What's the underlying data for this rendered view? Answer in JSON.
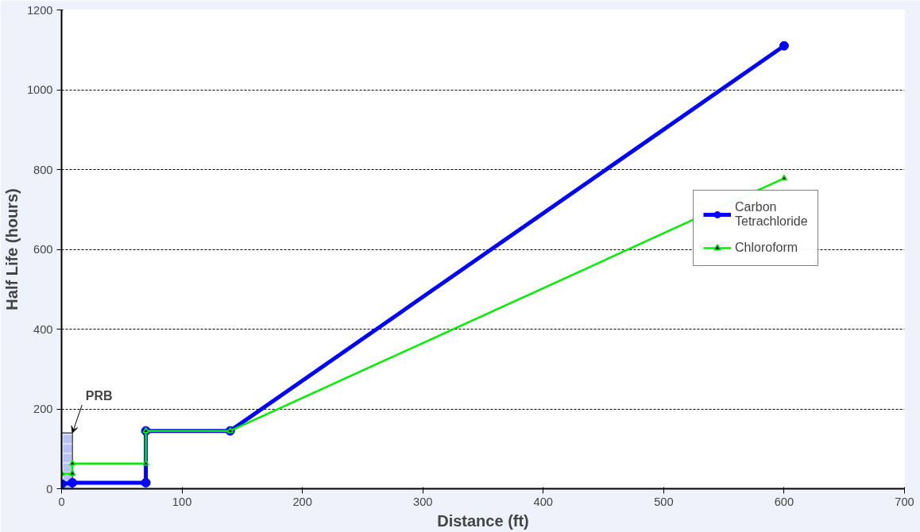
{
  "chart_data": {
    "type": "line",
    "xlabel": "Distance (ft)",
    "ylabel": "Half Life (hours)",
    "xlim": [
      0,
      700
    ],
    "xticks": [
      0,
      100,
      200,
      300,
      400,
      500,
      600,
      700
    ],
    "ylim": [
      0,
      1200
    ],
    "yticks": [
      0,
      200,
      400,
      600,
      800,
      1000,
      1200
    ],
    "grid": "y",
    "legend": "right",
    "line_style": "solid",
    "series": [
      {
        "name": "Carbon Tetrachloride",
        "color": "#0000ff",
        "marker": "circle",
        "x": [
          0,
          9,
          70,
          70,
          140,
          600
        ],
        "values": [
          12,
          15,
          15,
          145,
          145,
          1110
        ]
      },
      {
        "name": "Chloroform",
        "color": "#00ee00",
        "marker": "triangle",
        "x": [
          0,
          9,
          9,
          70,
          70,
          140,
          600
        ],
        "values": [
          38,
          38,
          63,
          63,
          145,
          145,
          778
        ]
      }
    ],
    "bands": [
      {
        "axis": "x",
        "from": 0,
        "to": 9,
        "color": "#8899ee"
      }
    ],
    "annotations": [
      {
        "text": "PRB",
        "x": 9,
        "y": 140
      }
    ]
  }
}
